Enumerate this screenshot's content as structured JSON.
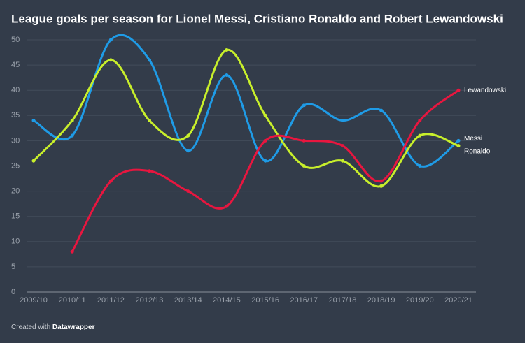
{
  "chart_data": {
    "type": "line",
    "title": "League goals per season for Lionel Messi, Cristiano Ronaldo and Robert Lewandowski",
    "categories": [
      "2009/10",
      "2010/11",
      "2011/12",
      "2012/13",
      "2013/14",
      "2014/15",
      "2015/16",
      "2016/17",
      "2017/18",
      "2018/19",
      "2019/20",
      "2020/21"
    ],
    "series": [
      {
        "name": "Messi",
        "color": "#1f9be6",
        "values": [
          34,
          31,
          50,
          46,
          28,
          43,
          26,
          37,
          34,
          36,
          25,
          30
        ]
      },
      {
        "name": "Ronaldo",
        "color": "#c8ef2b",
        "values": [
          26,
          34,
          46,
          34,
          31,
          48,
          35,
          25,
          26,
          21,
          31,
          29
        ]
      },
      {
        "name": "Lewandowski",
        "color": "#e8163f",
        "values": [
          null,
          8,
          22,
          24,
          20,
          17,
          30,
          30,
          29,
          22,
          34,
          40
        ]
      }
    ],
    "ylim": [
      0,
      50
    ],
    "yticks": [
      0,
      5,
      10,
      15,
      20,
      25,
      30,
      35,
      40,
      45,
      50
    ],
    "grid": true,
    "footer": {
      "prefix": "Created with",
      "brand": "Datawrapper"
    }
  }
}
